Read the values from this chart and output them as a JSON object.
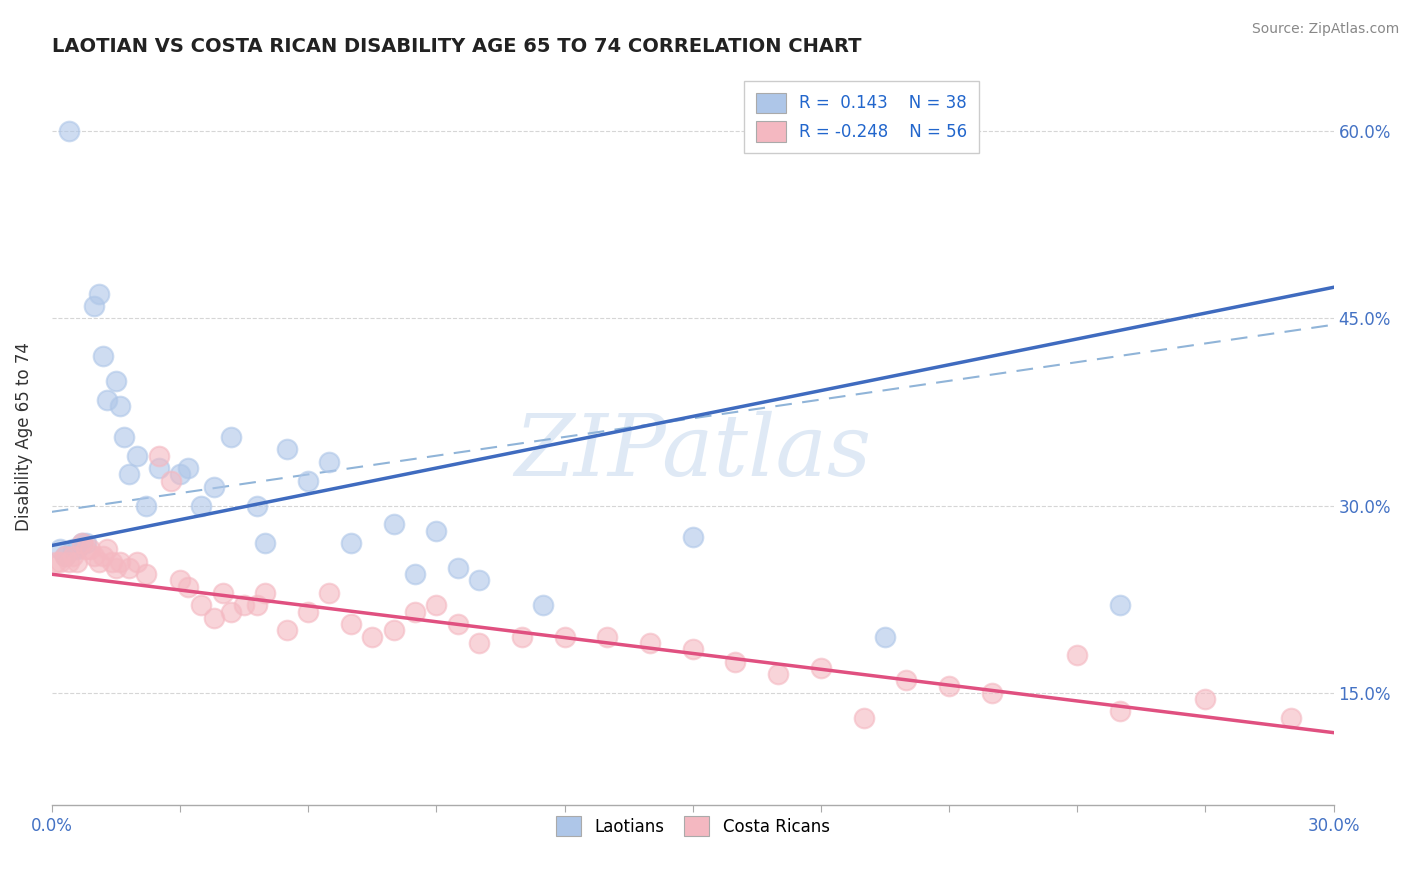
{
  "title": "LAOTIAN VS COSTA RICAN DISABILITY AGE 65 TO 74 CORRELATION CHART",
  "source": "Source: ZipAtlas.com",
  "ylabel": "Disability Age 65 to 74",
  "xlim": [
    0.0,
    0.3
  ],
  "ylim": [
    0.06,
    0.65
  ],
  "xticks": [
    0.0,
    0.03,
    0.06,
    0.09,
    0.12,
    0.15,
    0.18,
    0.21,
    0.24,
    0.27,
    0.3
  ],
  "ytick_positions": [
    0.15,
    0.3,
    0.45,
    0.6
  ],
  "ytick_labels": [
    "15.0%",
    "30.0%",
    "45.0%",
    "60.0%"
  ],
  "laotian_color": "#aec6e8",
  "costa_rican_color": "#f4b8c1",
  "laotian_line_color": "#3f6bbf",
  "costa_rican_line_color": "#e05080",
  "dashed_line_color": "#90b4d8",
  "watermark": "ZIPatlas",
  "background_color": "#ffffff",
  "laotian_r": 0.143,
  "laotian_n": 38,
  "costa_rican_r": -0.248,
  "costa_rican_n": 56,
  "blue_line_x": [
    0.0,
    0.3
  ],
  "blue_line_y": [
    0.268,
    0.475
  ],
  "pink_line_x": [
    0.0,
    0.3
  ],
  "pink_line_y": [
    0.245,
    0.118
  ],
  "dash_line_x": [
    0.0,
    0.3
  ],
  "dash_line_y": [
    0.295,
    0.445
  ],
  "lao_x": [
    0.002,
    0.003,
    0.004,
    0.005,
    0.006,
    0.007,
    0.008,
    0.01,
    0.011,
    0.012,
    0.013,
    0.015,
    0.016,
    0.017,
    0.018,
    0.02,
    0.022,
    0.025,
    0.03,
    0.032,
    0.035,
    0.038,
    0.042,
    0.048,
    0.05,
    0.055,
    0.06,
    0.065,
    0.07,
    0.08,
    0.085,
    0.09,
    0.095,
    0.1,
    0.115,
    0.15,
    0.195,
    0.25
  ],
  "lao_y": [
    0.265,
    0.26,
    0.6,
    0.265,
    0.265,
    0.27,
    0.27,
    0.46,
    0.47,
    0.42,
    0.385,
    0.4,
    0.38,
    0.355,
    0.325,
    0.34,
    0.3,
    0.33,
    0.325,
    0.33,
    0.3,
    0.315,
    0.355,
    0.3,
    0.27,
    0.345,
    0.32,
    0.335,
    0.27,
    0.285,
    0.245,
    0.28,
    0.25,
    0.24,
    0.22,
    0.275,
    0.195,
    0.22
  ],
  "costa_x": [
    0.001,
    0.002,
    0.003,
    0.004,
    0.005,
    0.006,
    0.007,
    0.008,
    0.009,
    0.01,
    0.011,
    0.012,
    0.013,
    0.014,
    0.015,
    0.016,
    0.018,
    0.02,
    0.022,
    0.025,
    0.028,
    0.03,
    0.032,
    0.035,
    0.038,
    0.04,
    0.042,
    0.045,
    0.048,
    0.05,
    0.055,
    0.06,
    0.065,
    0.07,
    0.075,
    0.08,
    0.085,
    0.09,
    0.095,
    0.1,
    0.11,
    0.12,
    0.13,
    0.14,
    0.15,
    0.16,
    0.17,
    0.18,
    0.19,
    0.2,
    0.21,
    0.22,
    0.24,
    0.25,
    0.27,
    0.29
  ],
  "costa_y": [
    0.255,
    0.255,
    0.26,
    0.255,
    0.26,
    0.255,
    0.27,
    0.265,
    0.265,
    0.26,
    0.255,
    0.26,
    0.265,
    0.255,
    0.25,
    0.255,
    0.25,
    0.255,
    0.245,
    0.34,
    0.32,
    0.24,
    0.235,
    0.22,
    0.21,
    0.23,
    0.215,
    0.22,
    0.22,
    0.23,
    0.2,
    0.215,
    0.23,
    0.205,
    0.195,
    0.2,
    0.215,
    0.22,
    0.205,
    0.19,
    0.195,
    0.195,
    0.195,
    0.19,
    0.185,
    0.175,
    0.165,
    0.17,
    0.13,
    0.16,
    0.155,
    0.15,
    0.18,
    0.135,
    0.145,
    0.13
  ]
}
